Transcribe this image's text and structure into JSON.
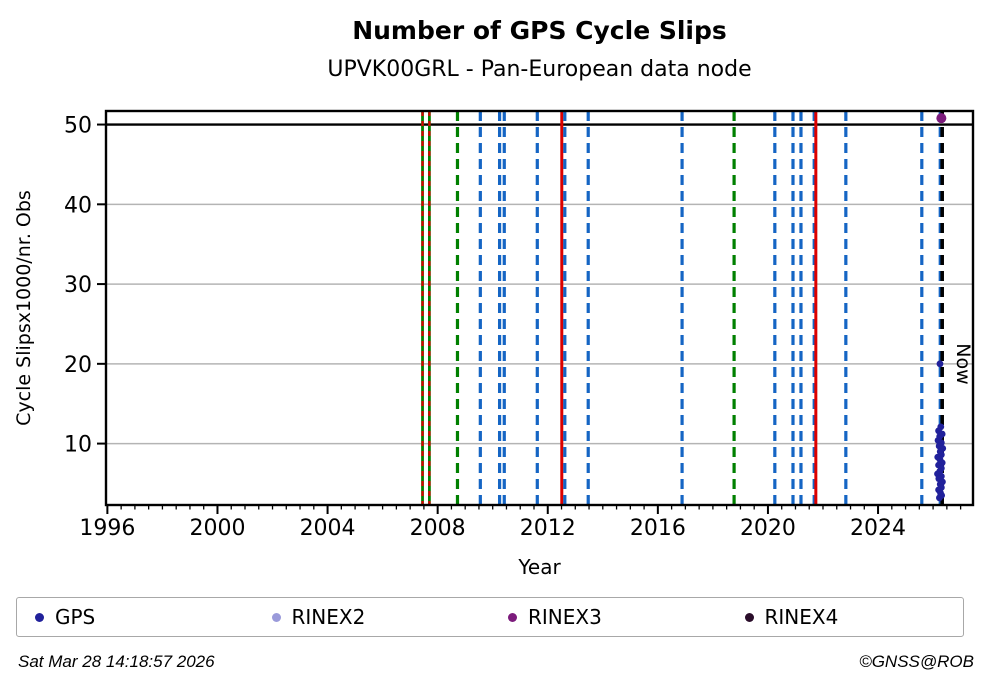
{
  "header": {
    "title": "Number of GPS Cycle Slips",
    "subtitle": "UPVK00GRL - Pan-European data node"
  },
  "chart_data": {
    "type": "scatter",
    "title": "Number of GPS Cycle Slips",
    "subtitle": "UPVK00GRL - Pan-European data node",
    "xlabel": "Year",
    "ylabel": "Cycle Slipsx1000/nr. Obs",
    "xlim": [
      1995.95,
      2027.45
    ],
    "ylim": [
      2.3,
      51.7
    ],
    "xticks": [
      1996,
      2000,
      2004,
      2008,
      2012,
      2016,
      2020,
      2024
    ],
    "x_minor_step": 0.5,
    "yticks": [
      10,
      20,
      30,
      40,
      50
    ],
    "grid_values": [
      10,
      20,
      30,
      40
    ],
    "grid_color": "#b4b4b4",
    "threshold_line_y": 50,
    "threshold_line_color": "#000000",
    "now_marker": {
      "x": 2026.33,
      "label": "Now"
    },
    "line_colors": {
      "blue": "#1565c4",
      "green": "#008000",
      "red": "#dc0000",
      "black": "#000000"
    },
    "event_lines": [
      {
        "x": 2007.45,
        "color": "green",
        "style": "solid"
      },
      {
        "x": 2007.45,
        "color": "red",
        "style": "dashed-short"
      },
      {
        "x": 2007.7,
        "color": "green",
        "style": "solid"
      },
      {
        "x": 2007.7,
        "color": "red",
        "style": "dashed-short"
      },
      {
        "x": 2008.72,
        "color": "green",
        "style": "dashed"
      },
      {
        "x": 2009.55,
        "color": "blue",
        "style": "dashed"
      },
      {
        "x": 2010.25,
        "color": "blue",
        "style": "dashed"
      },
      {
        "x": 2010.42,
        "color": "blue",
        "style": "dashed"
      },
      {
        "x": 2011.62,
        "color": "blue",
        "style": "dashed"
      },
      {
        "x": 2012.51,
        "color": "red",
        "style": "solid"
      },
      {
        "x": 2012.62,
        "color": "blue",
        "style": "dashed"
      },
      {
        "x": 2013.47,
        "color": "blue",
        "style": "dashed"
      },
      {
        "x": 2016.88,
        "color": "blue",
        "style": "dashed"
      },
      {
        "x": 2018.77,
        "color": "green",
        "style": "dashed"
      },
      {
        "x": 2020.25,
        "color": "blue",
        "style": "dashed"
      },
      {
        "x": 2020.91,
        "color": "blue",
        "style": "dashed"
      },
      {
        "x": 2021.2,
        "color": "blue",
        "style": "dashed"
      },
      {
        "x": 2021.68,
        "color": "blue",
        "style": "dashed"
      },
      {
        "x": 2021.74,
        "color": "red",
        "style": "solid"
      },
      {
        "x": 2022.83,
        "color": "blue",
        "style": "dashed"
      },
      {
        "x": 2025.59,
        "color": "blue",
        "style": "dashed"
      },
      {
        "x": 2026.26,
        "color": "blue",
        "style": "dashed"
      },
      {
        "x": 2026.33,
        "color": "black",
        "style": "dashed"
      }
    ],
    "series": [
      {
        "name": "GPS",
        "color": "#21219b",
        "marker_radius": 3.4,
        "points": [
          [
            2026.25,
            20.0
          ],
          [
            2026.28,
            12.1
          ],
          [
            2026.2,
            11.6
          ],
          [
            2026.33,
            11.2
          ],
          [
            2026.24,
            10.9
          ],
          [
            2026.18,
            10.4
          ],
          [
            2026.3,
            10.1
          ],
          [
            2026.22,
            9.7
          ],
          [
            2026.35,
            9.4
          ],
          [
            2026.26,
            9.0
          ],
          [
            2026.3,
            8.6
          ],
          [
            2026.17,
            8.3
          ],
          [
            2026.25,
            8.0
          ],
          [
            2026.33,
            7.6
          ],
          [
            2026.2,
            7.3
          ],
          [
            2026.3,
            6.9
          ],
          [
            2026.24,
            6.5
          ],
          [
            2026.16,
            6.2
          ],
          [
            2026.3,
            5.9
          ],
          [
            2026.21,
            5.6
          ],
          [
            2026.34,
            5.2
          ],
          [
            2026.26,
            4.9
          ],
          [
            2026.3,
            4.5
          ],
          [
            2026.2,
            4.2
          ],
          [
            2026.27,
            3.8
          ],
          [
            2026.31,
            3.5
          ],
          [
            2026.23,
            3.2
          ]
        ]
      },
      {
        "name": "RINEX2",
        "color": "#9a9ada",
        "marker_radius": 3.4,
        "points": []
      },
      {
        "name": "RINEX3",
        "color": "#7c1b7c",
        "marker_radius": 5,
        "points": [
          [
            2026.3,
            50.8
          ]
        ]
      },
      {
        "name": "RINEX4",
        "color": "#2a0d2a",
        "marker_radius": 3.4,
        "points": []
      }
    ]
  },
  "legend": {
    "items": [
      {
        "label": "GPS",
        "color": "#21219b"
      },
      {
        "label": "RINEX2",
        "color": "#9a9ada"
      },
      {
        "label": "RINEX3",
        "color": "#7c1b7c"
      },
      {
        "label": "RINEX4",
        "color": "#2a0d2a"
      }
    ]
  },
  "footer": {
    "timestamp": "Sat Mar 28 14:18:57 2026",
    "credit": "©GNSS@ROB"
  }
}
